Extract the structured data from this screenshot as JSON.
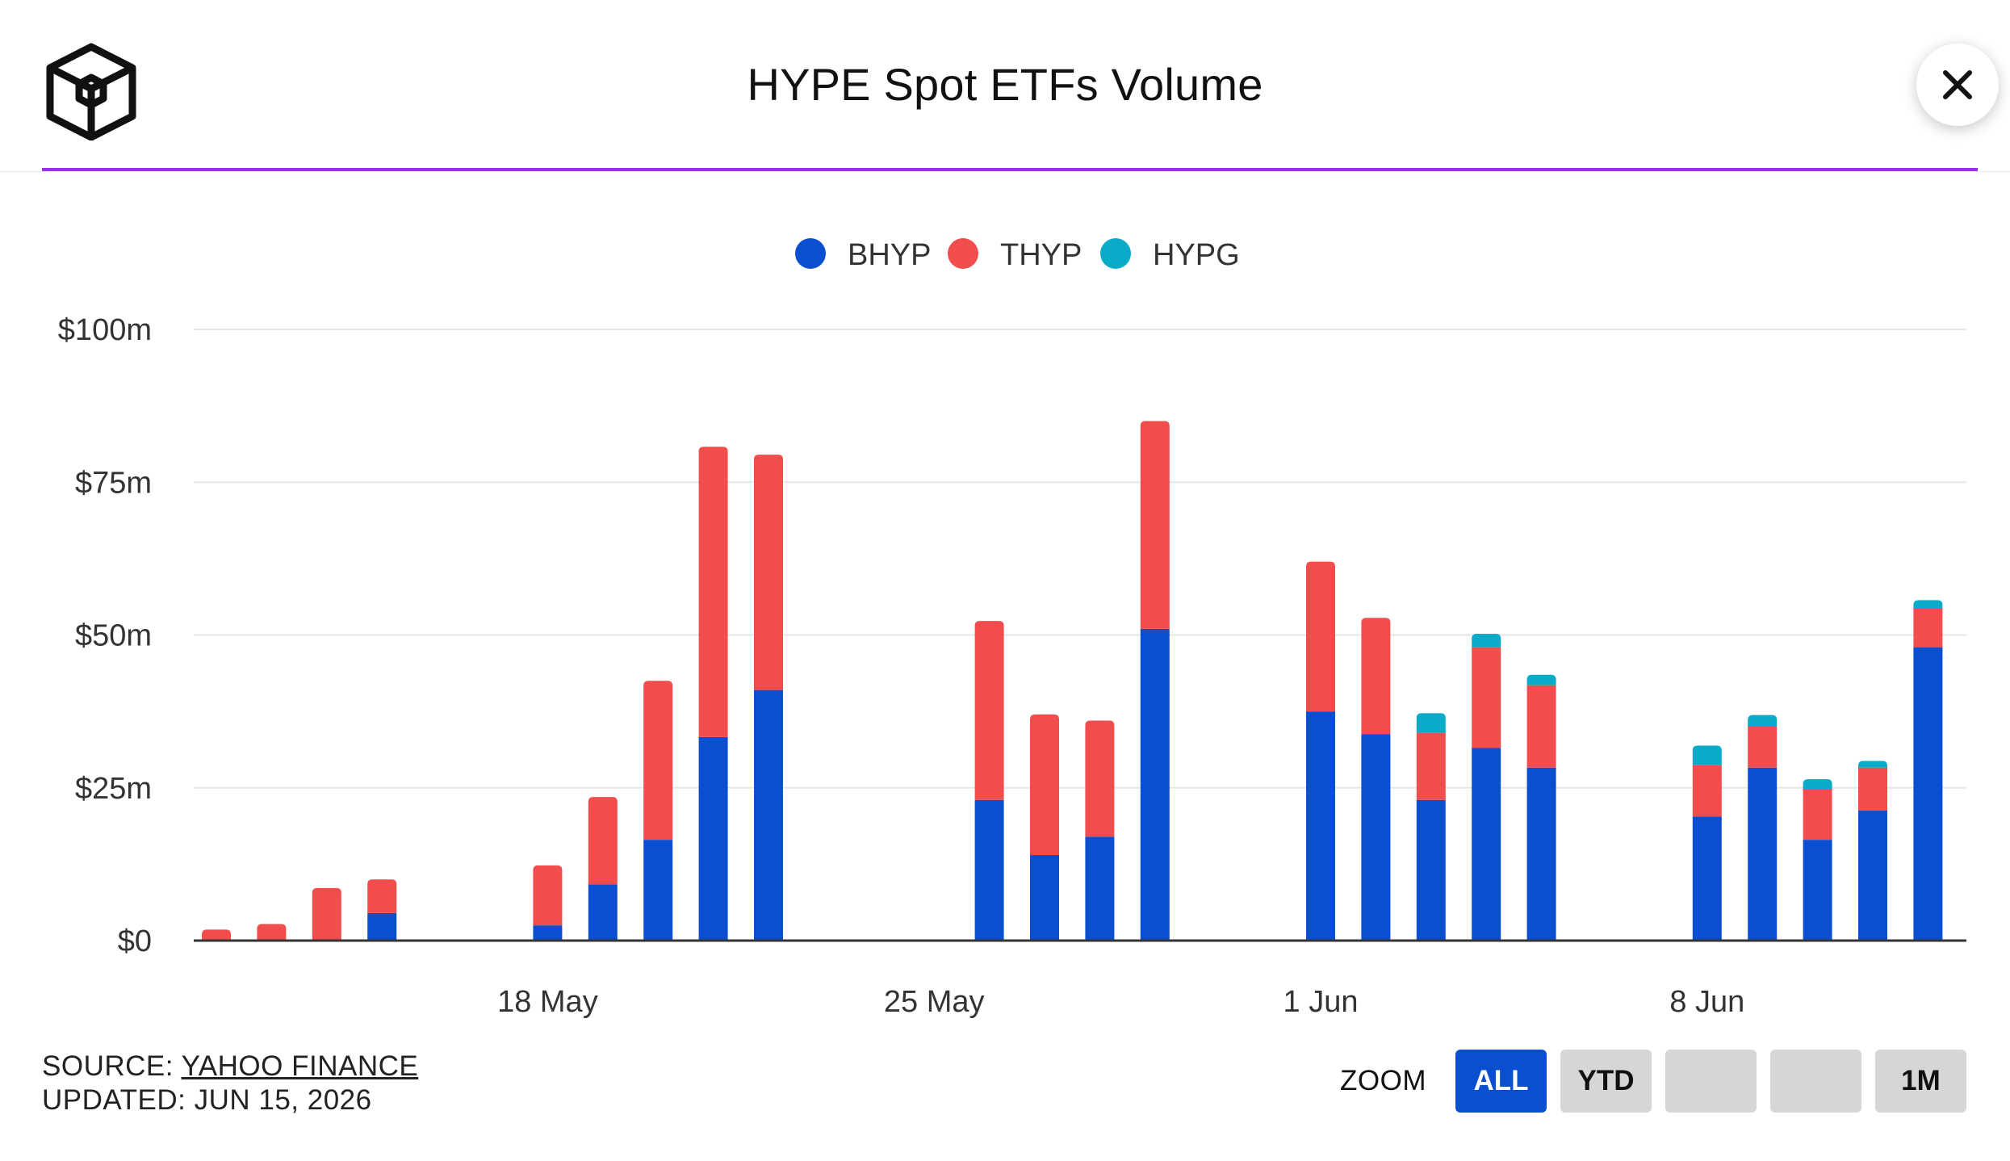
{
  "header": {
    "title": "HYPE Spot ETFs Volume",
    "logo_icon": "cube-logo-icon",
    "close_icon": "close-icon",
    "accent_color": "#9b30e0"
  },
  "chart_data": {
    "type": "bar",
    "stacked": true,
    "title": "HYPE Spot ETFs Volume",
    "xlabel": "",
    "ylabel": "",
    "ylim": [
      0,
      100
    ],
    "y_unit": "$m",
    "y_ticks": [
      0,
      25,
      50,
      75,
      100
    ],
    "y_tick_labels": [
      "$0",
      "$25m",
      "$50m",
      "$75m",
      "$100m"
    ],
    "x_ticks": [
      "2026-05-18",
      "2026-05-25",
      "2026-06-01",
      "2026-06-08"
    ],
    "x_tick_labels": [
      "18 May",
      "25 May",
      "1 Jun",
      "8 Jun"
    ],
    "x_range": [
      "2026-05-12",
      "2026-06-12"
    ],
    "grid": true,
    "legend": "top-center",
    "categories": [
      "2026-05-12",
      "2026-05-13",
      "2026-05-14",
      "2026-05-15",
      "2026-05-18",
      "2026-05-19",
      "2026-05-20",
      "2026-05-21",
      "2026-05-22",
      "2026-05-26",
      "2026-05-27",
      "2026-05-28",
      "2026-05-29",
      "2026-06-01",
      "2026-06-02",
      "2026-06-03",
      "2026-06-04",
      "2026-06-05",
      "2026-06-08",
      "2026-06-09",
      "2026-06-10",
      "2026-06-11",
      "2026-06-12"
    ],
    "series": [
      {
        "name": "BHYP",
        "color": "#0b4fd1",
        "values": [
          0,
          0,
          0,
          4.5,
          2.5,
          9.2,
          16.5,
          33.3,
          41.0,
          23.0,
          14.0,
          17.0,
          51.0,
          37.5,
          33.8,
          23.0,
          31.5,
          28.3,
          20.3,
          28.3,
          16.5,
          21.3,
          48.0
        ]
      },
      {
        "name": "THYP",
        "color": "#f24d4d",
        "values": [
          1.8,
          2.7,
          8.6,
          5.5,
          9.8,
          14.3,
          26.0,
          47.5,
          38.5,
          29.3,
          23.0,
          19.0,
          34.0,
          24.5,
          19.0,
          11.0,
          16.5,
          13.5,
          8.4,
          6.7,
          8.2,
          7.0,
          6.3
        ]
      },
      {
        "name": "HYPG",
        "color": "#0aabc8",
        "values": [
          0,
          0,
          0,
          0,
          0,
          0,
          0,
          0,
          0,
          0,
          0,
          0,
          0,
          0,
          0,
          3.2,
          2.2,
          1.7,
          3.2,
          1.9,
          1.7,
          1.1,
          1.4
        ]
      }
    ]
  },
  "footer": {
    "source_prefix": "SOURCE: ",
    "source_link": "YAHOO FINANCE",
    "updated": "UPDATED: JUN 15, 2026"
  },
  "zoom": {
    "label": "ZOOM",
    "active_color": "#0b4fd1",
    "buttons": [
      {
        "label": "ALL",
        "active": true
      },
      {
        "label": "YTD",
        "active": false
      },
      {
        "label": "",
        "active": false
      },
      {
        "label": "",
        "active": false
      },
      {
        "label": "1M",
        "active": false
      }
    ]
  }
}
